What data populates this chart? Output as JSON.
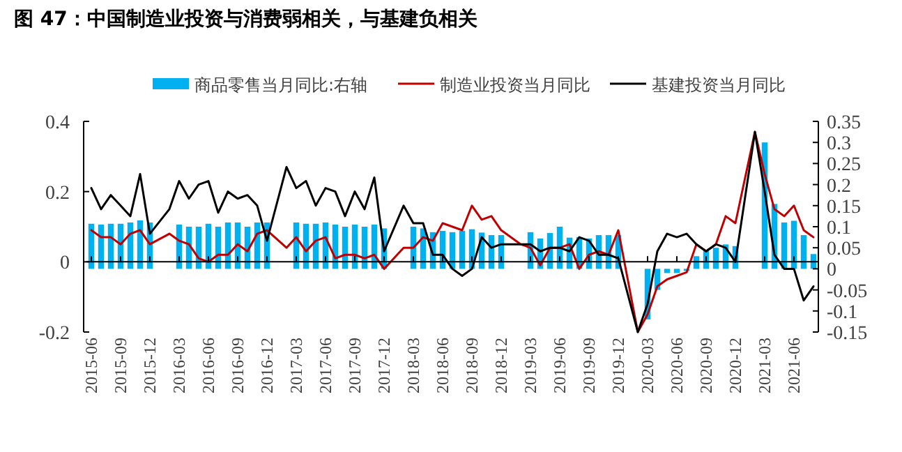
{
  "chart_data": {
    "type": "line",
    "title": "图 47：中国制造业投资与消费弱相关，与基建负相关",
    "categories": [
      "2015-06",
      null,
      null,
      "2015-09",
      null,
      null,
      "2015-12",
      null,
      null,
      "2016-03",
      null,
      null,
      "2016-06",
      null,
      null,
      "2016-09",
      null,
      null,
      "2016-12",
      null,
      null,
      "2017-03",
      null,
      null,
      "2017-06",
      null,
      null,
      "2017-09",
      null,
      null,
      "2017-12",
      null,
      null,
      "2018-03",
      null,
      null,
      "2018-06",
      null,
      null,
      "2018-09",
      null,
      null,
      "2018-12",
      null,
      null,
      "2019-03",
      null,
      null,
      "2019-06",
      null,
      null,
      "2019-09",
      null,
      null,
      "2019-12",
      null,
      null,
      "2020-03",
      null,
      null,
      "2020-06",
      null,
      null,
      "2020-09",
      null,
      null,
      "2020-12",
      null,
      null,
      "2021-03",
      null,
      null,
      "2021-06",
      null,
      null
    ],
    "series": [
      {
        "name": "商品零售当月同比:右轴",
        "type": "bar",
        "axis": "y2",
        "color": "#00b0f0",
        "values": [
          0.107,
          0.105,
          0.107,
          0.107,
          0.11,
          0.115,
          0.11,
          null,
          null,
          0.105,
          0.1,
          0.1,
          0.107,
          0.1,
          0.11,
          0.11,
          0.1,
          0.11,
          0.11,
          null,
          null,
          0.11,
          0.107,
          0.107,
          0.11,
          0.105,
          0.1,
          0.105,
          0.1,
          0.105,
          0.096,
          null,
          null,
          0.1,
          0.096,
          0.087,
          0.09,
          0.087,
          0.09,
          0.094,
          0.086,
          0.08,
          0.08,
          null,
          null,
          0.087,
          0.072,
          0.085,
          0.1,
          0.074,
          0.075,
          0.072,
          0.08,
          0.08,
          0.08,
          null,
          null,
          -0.12,
          -0.05,
          -0.01,
          -0.01,
          -0.005,
          0.03,
          0.043,
          0.05,
          0.058,
          0.054,
          null,
          null,
          0.3,
          0.154,
          0.11,
          0.114,
          0.08,
          0.035
        ]
      },
      {
        "name": "制造业投资当月同比",
        "color": "#c00000",
        "values": [
          0.09,
          0.07,
          0.07,
          0.05,
          0.08,
          0.09,
          0.05,
          null,
          0.08,
          0.06,
          0.05,
          0.01,
          0.0,
          0.02,
          0.02,
          0.05,
          0.03,
          0.08,
          0.09,
          null,
          0.04,
          0.07,
          0.03,
          0.06,
          0.07,
          0.01,
          0.02,
          0.02,
          0.01,
          0.02,
          -0.02,
          null,
          0.04,
          0.04,
          0.07,
          0.06,
          0.11,
          0.1,
          0.09,
          0.16,
          0.12,
          0.13,
          0.09,
          null,
          0.05,
          0.04,
          -0.01,
          0.04,
          0.04,
          0.05,
          -0.02,
          0.02,
          0.03,
          0.02,
          0.09,
          null,
          -0.2,
          -0.15,
          -0.07,
          -0.05,
          -0.04,
          -0.03,
          0.05,
          0.03,
          0.05,
          0.13,
          0.11,
          null,
          0.37,
          0.25,
          0.15,
          0.13,
          0.16,
          0.09,
          0.07
        ]
      },
      {
        "name": "基建投资当月同比",
        "color": "#000000",
        "values": [
          0.21,
          0.15,
          0.19,
          0.16,
          0.13,
          0.25,
          0.08,
          null,
          0.15,
          0.23,
          0.18,
          0.22,
          0.23,
          0.14,
          0.2,
          0.18,
          0.19,
          0.16,
          0.06,
          null,
          0.27,
          0.21,
          0.23,
          0.16,
          0.21,
          0.2,
          0.13,
          0.2,
          0.15,
          0.24,
          0.03,
          null,
          0.16,
          0.11,
          0.11,
          0.02,
          0.02,
          -0.02,
          -0.04,
          -0.02,
          0.07,
          0.04,
          0.05,
          null,
          0.05,
          0.05,
          0.03,
          0.04,
          0.04,
          0.03,
          0.07,
          0.06,
          0.02,
          0.02,
          0.01,
          null,
          -0.2,
          -0.12,
          0.03,
          0.08,
          0.07,
          0.08,
          0.05,
          0.03,
          0.05,
          0.04,
          0.0,
          null,
          0.37,
          0.2,
          0.02,
          -0.02,
          -0.02,
          -0.11,
          -0.07
        ]
      }
    ],
    "ylim": [
      -0.2,
      0.4
    ],
    "yticks": [
      -0.2,
      0,
      0.2,
      0.4
    ],
    "y2lim": [
      -0.15,
      0.35
    ],
    "y2ticks": [
      -0.15,
      -0.1,
      -0.05,
      0,
      0.05,
      0.1,
      0.15,
      0.2,
      0.25,
      0.3,
      0.35
    ],
    "legend": "top"
  }
}
